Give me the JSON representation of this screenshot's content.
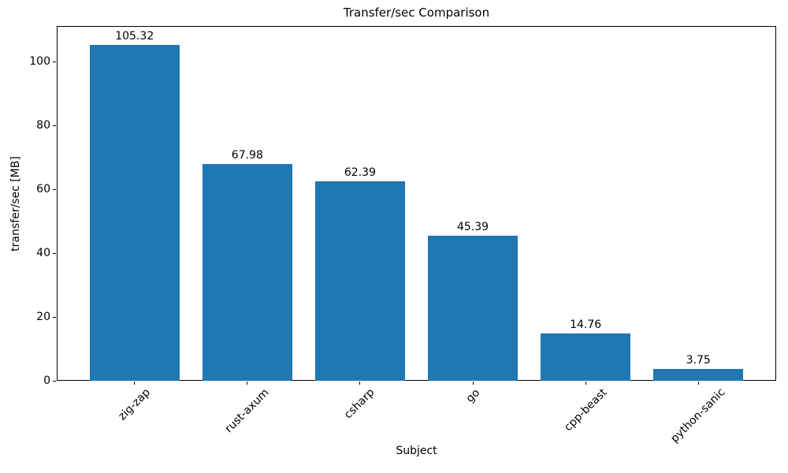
{
  "figure": {
    "background": "#ffffff",
    "text_color": "#000000",
    "spine_color": "#000000"
  },
  "chart_data": {
    "type": "bar",
    "title": "Transfer/sec Comparison",
    "xlabel": "Subject",
    "ylabel": "transfer/sec [MB]",
    "categories": [
      "zig-zap",
      "rust-axum",
      "csharp",
      "go",
      "cpp-beast",
      "python-sanic"
    ],
    "values": [
      105.32,
      67.98,
      62.39,
      45.39,
      14.76,
      3.75
    ],
    "bar_value_labels": [
      "105.32",
      "67.98",
      "62.39",
      "45.39",
      "14.76",
      "3.75"
    ],
    "yticks": [
      0,
      20,
      40,
      60,
      80,
      100
    ],
    "ytick_labels": [
      "0",
      "20",
      "40",
      "60",
      "80",
      "100"
    ],
    "ylim": [
      0,
      111.13
    ],
    "bar_color": "#1f77b4",
    "bar_width_fraction": 0.8,
    "x_tick_rotation_deg": 45,
    "grid": false,
    "legend": null
  }
}
